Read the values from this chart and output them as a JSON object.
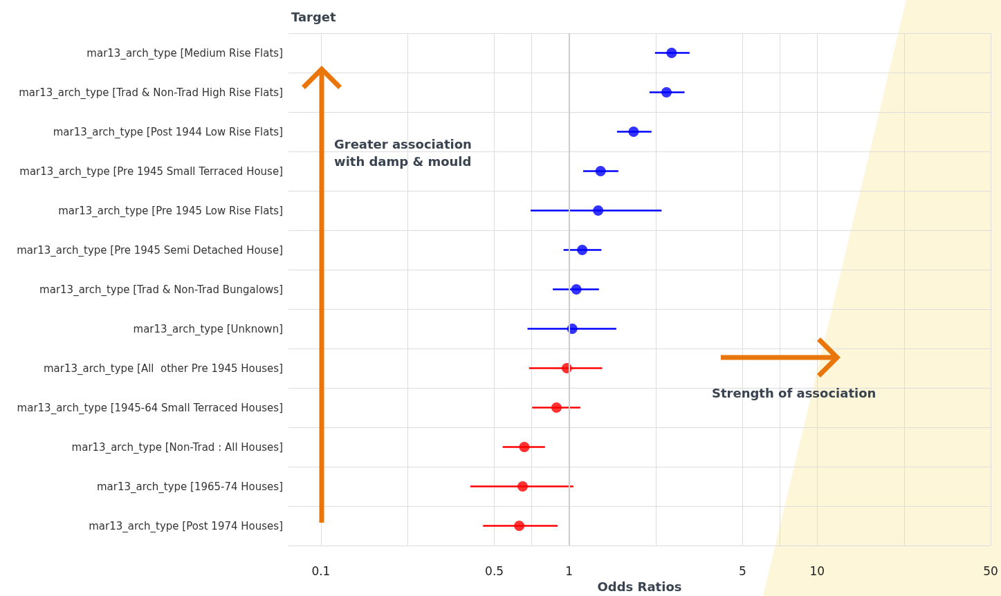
{
  "chart_data": {
    "type": "scatter",
    "orientation": "horizontal",
    "title": "Target",
    "xlabel": "Odds Ratios",
    "categories": [
      "mar13_arch_type [Medium Rise Flats]",
      "mar13_arch_type [Trad & Non-Trad High Rise Flats]",
      "mar13_arch_type [Post 1944 Low Rise Flats]",
      "mar13_arch_type [Pre 1945 Small Terraced House]",
      "mar13_arch_type [Pre 1945 Low Rise Flats]",
      "mar13_arch_type [Pre 1945 Semi Detached House]",
      "mar13_arch_type [Trad & Non-Trad Bungalows]",
      "mar13_arch_type [Unknown]",
      "mar13_arch_type [All  other Pre 1945 Houses]",
      "mar13_arch_type [1945-64 Small Terraced Houses]",
      "mar13_arch_type [Non-Trad : All Houses]",
      "mar13_arch_type [1965-74 Houses]",
      "mar13_arch_type [Post 1974 Houses]"
    ],
    "values": [
      2.59,
      2.47,
      1.82,
      1.34,
      1.31,
      1.13,
      1.07,
      1.03,
      0.98,
      0.89,
      0.66,
      0.65,
      0.63
    ],
    "errors": [
      [
        2.22,
        3.06
      ],
      [
        2.11,
        2.92
      ],
      [
        1.56,
        2.15
      ],
      [
        1.14,
        1.58
      ],
      [
        0.7,
        2.36
      ],
      [
        0.95,
        1.35
      ],
      [
        0.86,
        1.32
      ],
      [
        0.68,
        1.55
      ],
      [
        0.69,
        1.36
      ],
      [
        0.71,
        1.11
      ],
      [
        0.54,
        0.8
      ],
      [
        0.4,
        1.04
      ],
      [
        0.45,
        0.9
      ]
    ],
    "colors": [
      "#0000ff",
      "#0000ff",
      "#0000ff",
      "#0000ff",
      "#0000ff",
      "#0000ff",
      "#0000ff",
      "#0000ff",
      "#ff0000",
      "#ff0000",
      "#ff0000",
      "#ff0000",
      "#ff0000"
    ],
    "log": "x",
    "xlim": [
      0.074,
      50
    ],
    "xticks": [
      0.1,
      {
        "value": 0.224,
        "label": null
      },
      0.5,
      {
        "value": 0.707,
        "label": null
      },
      1,
      {
        "value": 2.24,
        "label": null
      },
      5,
      {
        "value": 7.07,
        "label": null
      },
      10,
      {
        "value": 22.4,
        "label": null
      },
      50
    ],
    "ref_lines": [
      {
        "axis": "x",
        "value": 1,
        "label": null,
        "color": "#cccccc"
      }
    ],
    "grid": true,
    "marker": "circle",
    "annotations": [
      "Greater association with damp & mould",
      "Strength of association"
    ]
  }
}
